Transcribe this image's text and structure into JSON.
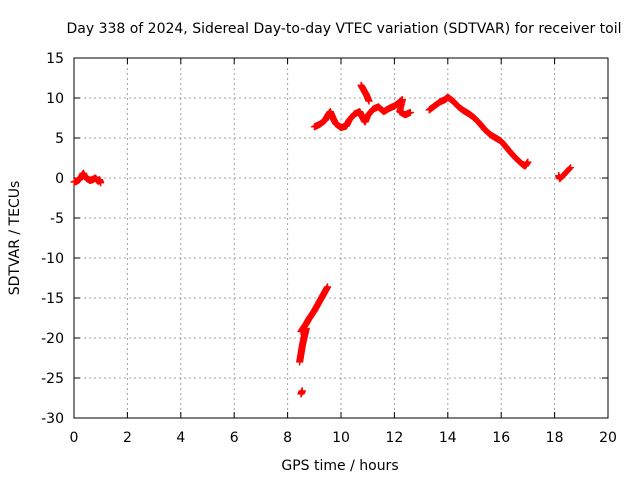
{
  "chart_data": {
    "type": "scatter",
    "title": "Day 338 of 2024, Sidereal Day-to-day VTEC variation (SDTVAR) for receiver toil",
    "xlabel": "GPS time / hours",
    "ylabel": "SDTVAR / TECUs",
    "xlim": [
      0,
      20
    ],
    "ylim": [
      -30,
      15
    ],
    "xticks": [
      0,
      2,
      4,
      6,
      8,
      10,
      12,
      14,
      16,
      18,
      20
    ],
    "yticks": [
      -30,
      -25,
      -20,
      -15,
      -10,
      -5,
      0,
      5,
      10,
      15
    ],
    "grid": true,
    "marker": "+",
    "series": [
      {
        "name": "SDTVAR",
        "color": "#ff0000",
        "segments": [
          [
            [
              0.0,
              -0.5
            ],
            [
              0.1,
              -0.4
            ],
            [
              0.2,
              -0.2
            ],
            [
              0.3,
              0.3
            ],
            [
              0.35,
              0.6
            ],
            [
              0.4,
              0.2
            ],
            [
              0.5,
              -0.1
            ],
            [
              0.6,
              -0.3
            ],
            [
              0.7,
              -0.2
            ],
            [
              0.8,
              0.0
            ],
            [
              0.9,
              -0.4
            ],
            [
              0.95,
              -0.2
            ],
            [
              1.0,
              -0.6
            ]
          ],
          [
            [
              8.5,
              -27.0
            ],
            [
              8.55,
              -26.6
            ]
          ],
          [
            [
              8.45,
              -23.0
            ],
            [
              8.5,
              -22.0
            ],
            [
              8.55,
              -21.0
            ],
            [
              8.6,
              -20.2
            ],
            [
              8.65,
              -19.5
            ],
            [
              8.7,
              -18.8
            ]
          ],
          [
            [
              8.5,
              -19.2
            ],
            [
              8.6,
              -18.7
            ],
            [
              8.7,
              -18.2
            ],
            [
              8.8,
              -17.6
            ],
            [
              8.9,
              -17.1
            ],
            [
              9.0,
              -16.6
            ],
            [
              9.1,
              -16.0
            ],
            [
              9.2,
              -15.4
            ],
            [
              9.3,
              -14.8
            ],
            [
              9.4,
              -14.2
            ],
            [
              9.5,
              -13.6
            ]
          ],
          [
            [
              9.0,
              6.4
            ],
            [
              9.2,
              6.7
            ],
            [
              9.4,
              7.2
            ],
            [
              9.5,
              7.8
            ],
            [
              9.6,
              8.3
            ],
            [
              9.7,
              7.5
            ],
            [
              9.8,
              6.8
            ],
            [
              10.0,
              6.3
            ],
            [
              10.2,
              6.5
            ],
            [
              10.3,
              7.2
            ],
            [
              10.5,
              8.0
            ],
            [
              10.7,
              8.3
            ],
            [
              10.8,
              7.6
            ],
            [
              10.9,
              7.0
            ],
            [
              11.0,
              7.8
            ],
            [
              11.2,
              8.6
            ],
            [
              11.4,
              8.9
            ],
            [
              11.6,
              8.3
            ],
            [
              11.8,
              8.7
            ],
            [
              12.0,
              9.0
            ],
            [
              12.2,
              9.5
            ],
            [
              12.3,
              9.8
            ],
            [
              12.2,
              8.3
            ],
            [
              12.4,
              7.9
            ],
            [
              12.6,
              8.2
            ]
          ],
          [
            [
              10.75,
              11.6
            ],
            [
              10.85,
              11.0
            ],
            [
              10.95,
              10.4
            ],
            [
              11.05,
              9.6
            ]
          ],
          [
            [
              13.3,
              8.5
            ],
            [
              13.5,
              9.0
            ],
            [
              13.7,
              9.5
            ],
            [
              13.9,
              9.8
            ],
            [
              14.0,
              10.1
            ],
            [
              14.2,
              9.6
            ],
            [
              14.4,
              8.9
            ],
            [
              14.6,
              8.4
            ],
            [
              14.8,
              8.0
            ],
            [
              15.0,
              7.5
            ],
            [
              15.2,
              6.8
            ],
            [
              15.4,
              6.0
            ],
            [
              15.6,
              5.4
            ],
            [
              15.8,
              5.0
            ],
            [
              16.0,
              4.6
            ],
            [
              16.2,
              3.8
            ],
            [
              16.4,
              3.0
            ],
            [
              16.6,
              2.3
            ],
            [
              16.8,
              1.7
            ],
            [
              16.9,
              1.5
            ],
            [
              17.0,
              2.0
            ]
          ],
          [
            [
              18.15,
              0.3
            ],
            [
              18.2,
              -0.1
            ],
            [
              18.6,
              1.3
            ]
          ]
        ]
      }
    ]
  }
}
